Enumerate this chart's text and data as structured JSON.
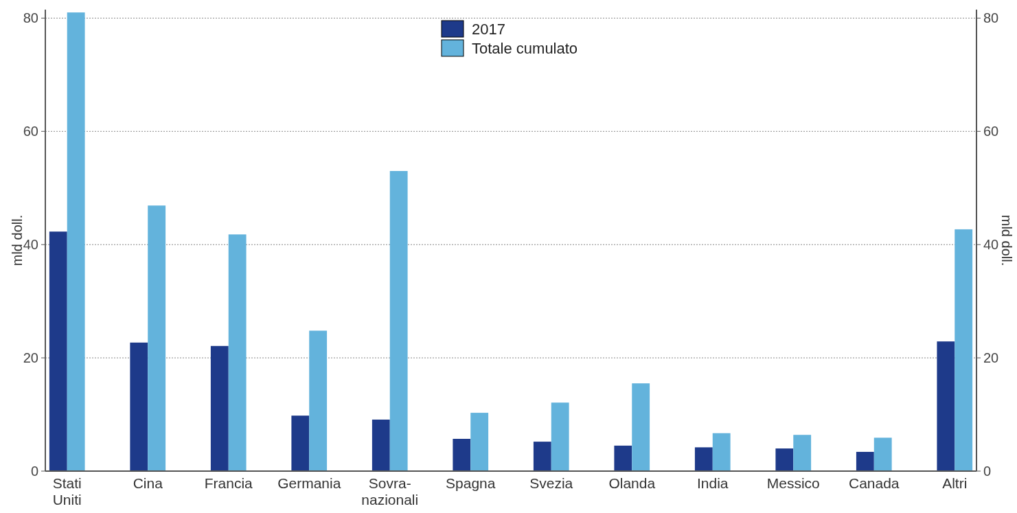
{
  "chart_data": {
    "type": "bar",
    "categories": [
      "Stati\nUniti",
      "Cina",
      "Francia",
      "Germania",
      "Sovra-\nnazionali",
      "Spagna",
      "Svezia",
      "Olanda",
      "India",
      "Messico",
      "Canada",
      "Altri"
    ],
    "series": [
      {
        "name": "2017",
        "color": "#1e3a8a",
        "values": [
          42.3,
          22.7,
          22.1,
          9.8,
          9.1,
          5.7,
          5.2,
          4.5,
          4.2,
          4.0,
          3.4,
          22.9
        ]
      },
      {
        "name": "Totale cumulato",
        "color": "#63b3dc",
        "values": [
          81.0,
          46.9,
          41.8,
          24.8,
          53.0,
          10.3,
          12.1,
          15.5,
          6.7,
          6.4,
          5.9,
          42.7
        ]
      }
    ],
    "ylabel": "mld doll.",
    "y2label": "mld doll.",
    "ylim": [
      0,
      81.5
    ],
    "yticks": [
      0,
      20,
      40,
      60,
      80
    ],
    "y2lim": [
      0,
      81.5
    ],
    "y2ticks": [
      0,
      20,
      40,
      60,
      80
    ],
    "grid": "y",
    "legend": "top"
  }
}
